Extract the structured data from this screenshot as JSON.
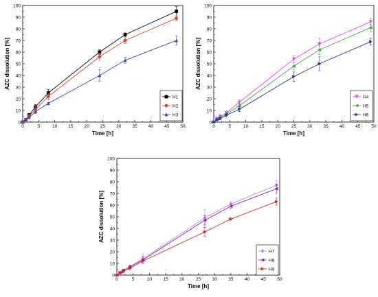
{
  "chart_data": [
    {
      "type": "line",
      "xlabel": "Time [h]",
      "ylabel": "AZC dissolution [%]",
      "xlim": [
        0,
        50
      ],
      "ylim": [
        0,
        100
      ],
      "xticks": [
        0,
        5,
        10,
        15,
        20,
        25,
        30,
        35,
        40,
        45,
        50
      ],
      "yticks": [
        0,
        10,
        20,
        30,
        40,
        50,
        60,
        70,
        80,
        90,
        100
      ],
      "legend_position": "bottom-right",
      "series": [
        {
          "name": "H1",
          "color": "#000000",
          "marker": "square",
          "x": [
            0,
            1,
            2,
            4,
            8,
            24,
            32,
            48
          ],
          "y": [
            0,
            2,
            6,
            13,
            25,
            60,
            75,
            95
          ],
          "err": [
            0.5,
            1,
            1.5,
            2,
            3,
            2,
            1.5,
            4
          ]
        },
        {
          "name": "H2",
          "color": "#e53935",
          "marker": "circle",
          "x": [
            0,
            1,
            2,
            4,
            8,
            24,
            32,
            48
          ],
          "y": [
            0,
            2,
            5,
            11,
            22,
            56,
            70,
            89
          ],
          "err": [
            0.5,
            1,
            1.5,
            2,
            3,
            3,
            2.5,
            2
          ]
        },
        {
          "name": "H3",
          "color": "#3949ab",
          "marker": "triangle",
          "x": [
            0,
            1,
            2,
            4,
            8,
            24,
            32,
            48
          ],
          "y": [
            0,
            2,
            4,
            9,
            16,
            40,
            53,
            70
          ],
          "err": [
            0.5,
            1,
            1,
            1.5,
            1,
            5,
            2.5,
            4
          ]
        }
      ]
    },
    {
      "type": "line",
      "xlabel": "Time [h]",
      "ylabel": "AZC dissolution [%]",
      "xlim": [
        0,
        50
      ],
      "ylim": [
        0,
        100
      ],
      "xticks": [
        0,
        5,
        10,
        15,
        20,
        25,
        30,
        35,
        40,
        45,
        50
      ],
      "yticks": [
        0,
        10,
        20,
        30,
        40,
        50,
        60,
        70,
        80,
        90,
        100
      ],
      "legend_position": "bottom-right",
      "series": [
        {
          "name": "H4",
          "color": "#e040fb",
          "marker": "triangle-down",
          "x": [
            0,
            1,
            2,
            4,
            8,
            25,
            33,
            49
          ],
          "y": [
            0,
            3,
            5,
            8,
            17,
            54,
            67,
            86
          ],
          "err": [
            0.5,
            1,
            1,
            1.5,
            2,
            3,
            5,
            3
          ]
        },
        {
          "name": "H5",
          "color": "#43a047",
          "marker": "triangle-left",
          "x": [
            0,
            1,
            2,
            4,
            8,
            25,
            33,
            49
          ],
          "y": [
            0,
            2,
            4,
            7,
            14,
            48,
            62,
            81
          ],
          "err": [
            0.5,
            1,
            1,
            1.5,
            2,
            3,
            4,
            3
          ]
        },
        {
          "name": "H6",
          "color": "#283593",
          "marker": "triangle-right",
          "x": [
            0,
            1,
            2,
            4,
            8,
            25,
            33,
            49
          ],
          "y": [
            0,
            2,
            3,
            6,
            11,
            39,
            50,
            69
          ],
          "err": [
            0.5,
            1,
            1,
            1.5,
            2,
            4,
            6,
            3
          ]
        }
      ]
    },
    {
      "type": "line",
      "xlabel": "Time [h]",
      "ylabel": "AZC dissolution [%]",
      "xlim": [
        0,
        50
      ],
      "ylim": [
        0,
        100
      ],
      "xticks": [
        0,
        5,
        10,
        15,
        20,
        25,
        30,
        35,
        40,
        45,
        50
      ],
      "yticks": [
        0,
        10,
        20,
        30,
        40,
        50,
        60,
        70,
        80,
        90,
        100
      ],
      "legend_position": "bottom-right",
      "series": [
        {
          "name": "H7",
          "color": "#b388ff",
          "marker": "diamond",
          "x": [
            0,
            1,
            2,
            4,
            8,
            27,
            35,
            49
          ],
          "y": [
            0,
            2,
            4,
            7,
            14,
            49,
            61,
            77
          ],
          "err": [
            0.5,
            1,
            1,
            1.5,
            4,
            7,
            2,
            4
          ]
        },
        {
          "name": "H8",
          "color": "#8e24aa",
          "marker": "triangle-left",
          "x": [
            0,
            1,
            2,
            4,
            8,
            27,
            35,
            49
          ],
          "y": [
            0,
            2,
            4,
            7,
            13,
            47,
            59,
            74
          ],
          "err": [
            0.5,
            1,
            1,
            1.5,
            3,
            4,
            2,
            4
          ]
        },
        {
          "name": "H9",
          "color": "#c62828",
          "marker": "triangle-right",
          "x": [
            0,
            1,
            2,
            4,
            8,
            27,
            35,
            49
          ],
          "y": [
            0,
            2,
            3,
            6,
            12,
            37,
            48,
            63
          ],
          "err": [
            0.5,
            1,
            1,
            1.5,
            2,
            4,
            1,
            3
          ]
        }
      ]
    }
  ]
}
